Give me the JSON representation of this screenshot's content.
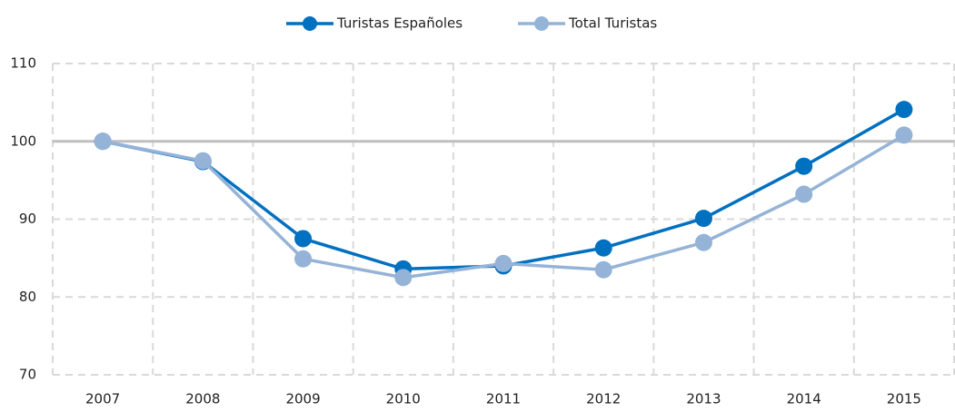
{
  "chart_data": {
    "type": "line",
    "categories": [
      "2007",
      "2008",
      "2009",
      "2010",
      "2011",
      "2012",
      "2013",
      "2014",
      "2015"
    ],
    "series": [
      {
        "name": "Turistas Españoles",
        "color": "#0070c0",
        "values": [
          100,
          97.4,
          87.5,
          83.6,
          84.0,
          86.3,
          90.1,
          96.8,
          104.1
        ]
      },
      {
        "name": "Total Turistas",
        "color": "#95b3d7",
        "values": [
          100,
          97.5,
          84.9,
          82.5,
          84.3,
          83.5,
          87.0,
          93.2,
          100.8
        ]
      }
    ],
    "ylim": [
      70,
      110
    ],
    "yticks": [
      70,
      80,
      90,
      100,
      110
    ],
    "grid": true,
    "baseline": 100,
    "legend": "top"
  }
}
